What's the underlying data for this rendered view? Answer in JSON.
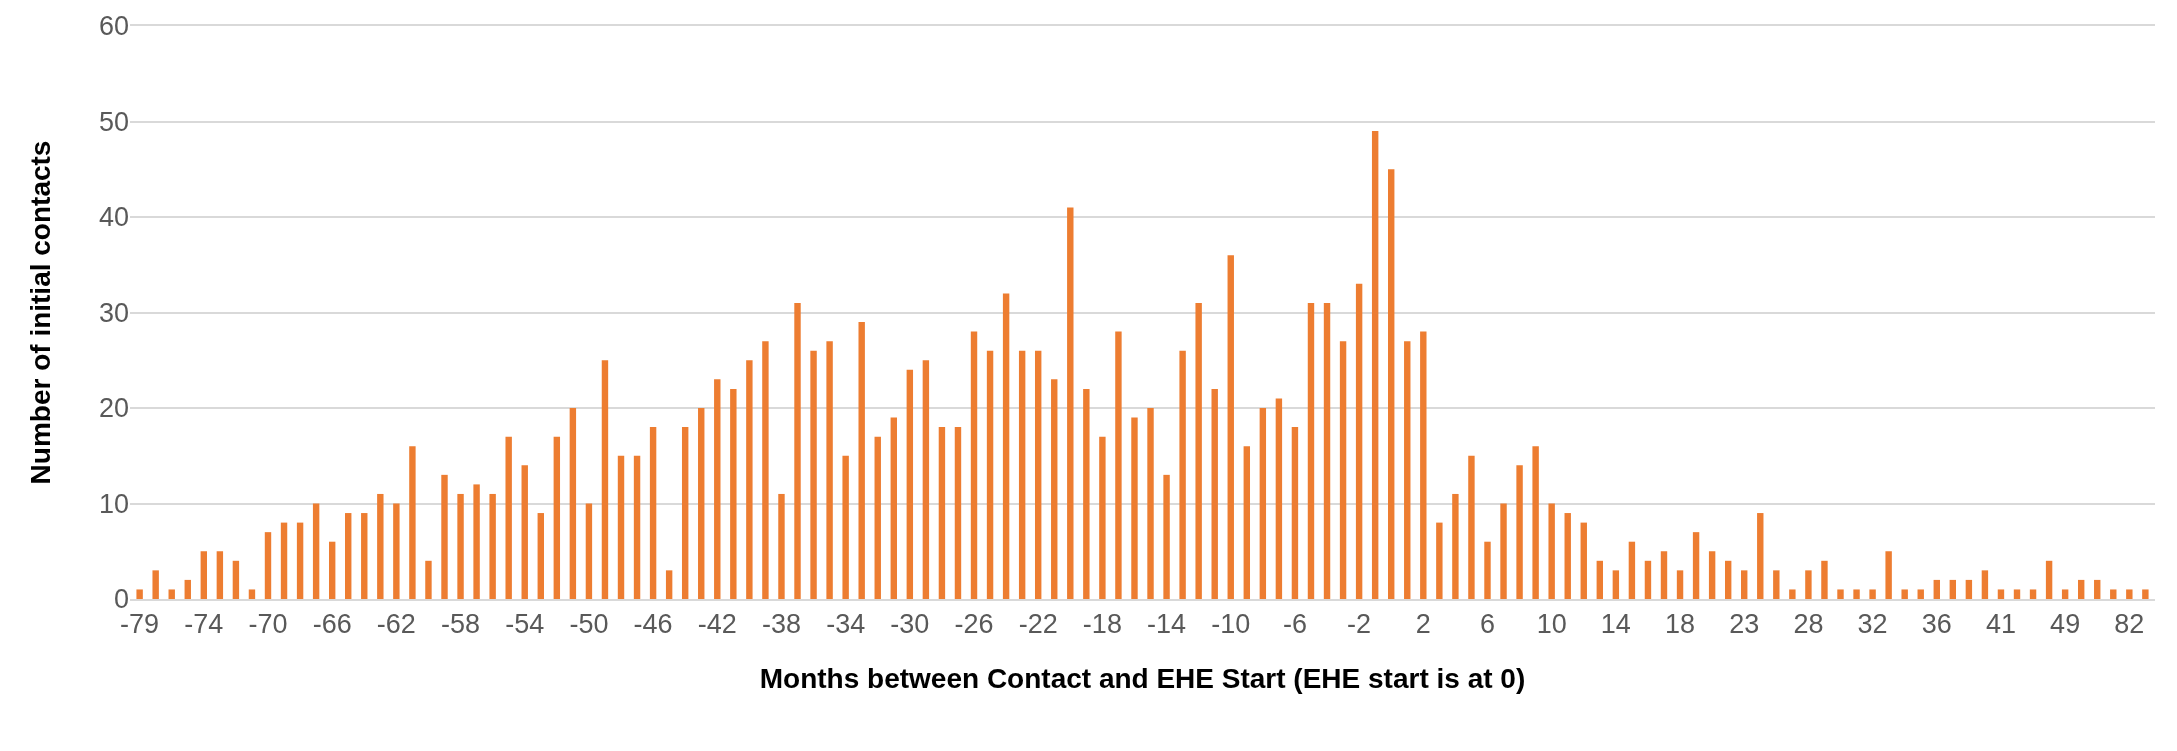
{
  "chart_data": {
    "type": "bar",
    "xlabel": "Months between Contact and EHE Start (EHE start is at 0)",
    "ylabel": "Number of initial contacts",
    "categories": [
      "-79",
      null,
      null,
      null,
      "-74",
      null,
      null,
      null,
      "-70",
      null,
      null,
      null,
      "-66",
      null,
      null,
      null,
      "-62",
      null,
      null,
      null,
      "-58",
      null,
      null,
      null,
      "-54",
      null,
      null,
      null,
      "-50",
      null,
      null,
      null,
      "-46",
      null,
      null,
      null,
      "-42",
      null,
      null,
      null,
      "-38",
      null,
      null,
      null,
      "-34",
      null,
      null,
      null,
      "-30",
      null,
      null,
      null,
      "-26",
      null,
      null,
      null,
      "-22",
      null,
      null,
      null,
      "-18",
      null,
      null,
      null,
      "-14",
      null,
      null,
      null,
      "-10",
      null,
      null,
      null,
      "-6",
      null,
      null,
      null,
      "-2",
      null,
      null,
      null,
      "2",
      null,
      null,
      null,
      "6",
      null,
      null,
      null,
      "10",
      null,
      null,
      null,
      "14",
      null,
      null,
      null,
      "18",
      null,
      null,
      null,
      "23",
      null,
      null,
      null,
      "28",
      null,
      null,
      null,
      "32",
      null,
      null,
      null,
      "36",
      null,
      null,
      null,
      "41",
      null,
      null,
      null,
      "49",
      null,
      null,
      null,
      "82",
      null
    ],
    "values": [
      1,
      3,
      1,
      2,
      5,
      5,
      4,
      1,
      7,
      8,
      8,
      10,
      6,
      9,
      9,
      11,
      10,
      16,
      4,
      13,
      11,
      12,
      11,
      17,
      14,
      9,
      17,
      20,
      10,
      25,
      15,
      15,
      18,
      3,
      18,
      20,
      23,
      22,
      25,
      27,
      11,
      31,
      26,
      27,
      15,
      29,
      17,
      19,
      24,
      25,
      18,
      18,
      28,
      26,
      32,
      26,
      26,
      23,
      41,
      22,
      17,
      28,
      19,
      20,
      13,
      26,
      31,
      22,
      36,
      16,
      20,
      21,
      18,
      31,
      31,
      27,
      33,
      49,
      45,
      27,
      28,
      8,
      11,
      15,
      6,
      10,
      14,
      16,
      10,
      9,
      8,
      4,
      3,
      6,
      4,
      5,
      3,
      7,
      5,
      4,
      3,
      9,
      3,
      1,
      3,
      4,
      1,
      1,
      1,
      5,
      1,
      1,
      2,
      2,
      2,
      3,
      1,
      1,
      1,
      4,
      1,
      2,
      2,
      1,
      1,
      1
    ],
    "color": "#ed7d31",
    "ylim": [
      0,
      60
    ],
    "yticks": [
      0,
      10,
      20,
      30,
      40,
      50,
      60
    ],
    "grid": "y"
  }
}
